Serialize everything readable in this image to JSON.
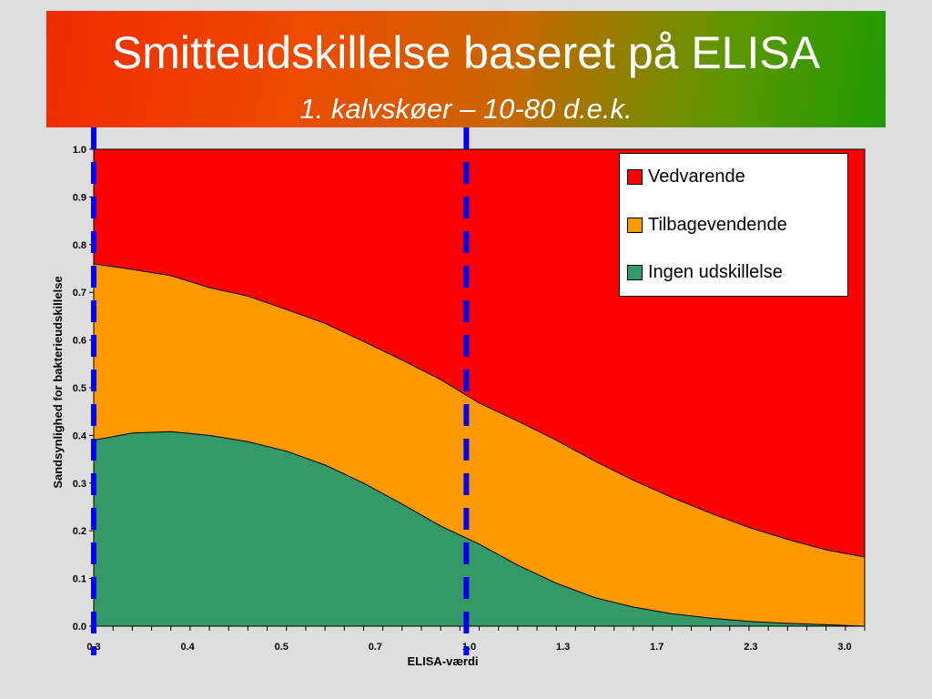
{
  "title": {
    "main": "Smitteudskillelse baseret på ELISA",
    "subtitle": "1. kalvskøer – 10-80 d.e.k."
  },
  "chart_data": {
    "type": "area",
    "stacked": true,
    "xlabel": "ELISA-værdi",
    "ylabel": "Sandsynlighed for bakterieudskillelse",
    "ylim": [
      0,
      1
    ],
    "yticks": [
      "0.0",
      "0.1",
      "0.2",
      "0.3",
      "0.4",
      "0.5",
      "0.6",
      "0.7",
      "0.8",
      "0.9",
      "1.0"
    ],
    "xtick_labels": [
      "0.3",
      "0.4",
      "0.5",
      "0.7",
      "1.0",
      "1.3",
      "1.7",
      "2.3",
      "3.0"
    ],
    "x_positions": [
      0.0,
      0.05,
      0.1,
      0.15,
      0.2,
      0.25,
      0.3,
      0.35,
      0.4,
      0.45,
      0.5,
      0.55,
      0.6,
      0.65,
      0.7,
      0.75,
      0.8,
      0.85,
      0.9,
      0.95,
      1.0
    ],
    "series": [
      {
        "name": "Ingen udskillelse",
        "color": "#339966",
        "values": [
          0.39,
          0.405,
          0.408,
          0.4,
          0.387,
          0.367,
          0.338,
          0.3,
          0.256,
          0.21,
          0.172,
          0.128,
          0.09,
          0.06,
          0.04,
          0.026,
          0.017,
          0.01,
          0.006,
          0.003,
          0.0
        ]
      },
      {
        "name": "Tilbagevendende",
        "color": "#ff9900",
        "values": [
          0.37,
          0.343,
          0.327,
          0.31,
          0.305,
          0.297,
          0.297,
          0.297,
          0.302,
          0.307,
          0.296,
          0.302,
          0.3,
          0.286,
          0.266,
          0.244,
          0.22,
          0.197,
          0.176,
          0.157,
          0.145
        ]
      },
      {
        "name": "Vedvarende",
        "color": "#ff0000",
        "values": [
          0.24,
          0.252,
          0.265,
          0.29,
          0.308,
          0.336,
          0.365,
          0.403,
          0.442,
          0.483,
          0.532,
          0.57,
          0.61,
          0.654,
          0.694,
          0.73,
          0.763,
          0.793,
          0.818,
          0.84,
          0.855
        ]
      }
    ],
    "legend": {
      "placement": "top-right",
      "order": [
        "Vedvarende",
        "Tilbagevendende",
        "Ingen udskillelse"
      ]
    },
    "annotations": [
      {
        "type": "vertical-dashed-line",
        "color": "#0000ee",
        "x": 0.0
      },
      {
        "type": "vertical-dashed-line",
        "color": "#0000ee",
        "x": 0.4833
      }
    ],
    "grid": false
  }
}
